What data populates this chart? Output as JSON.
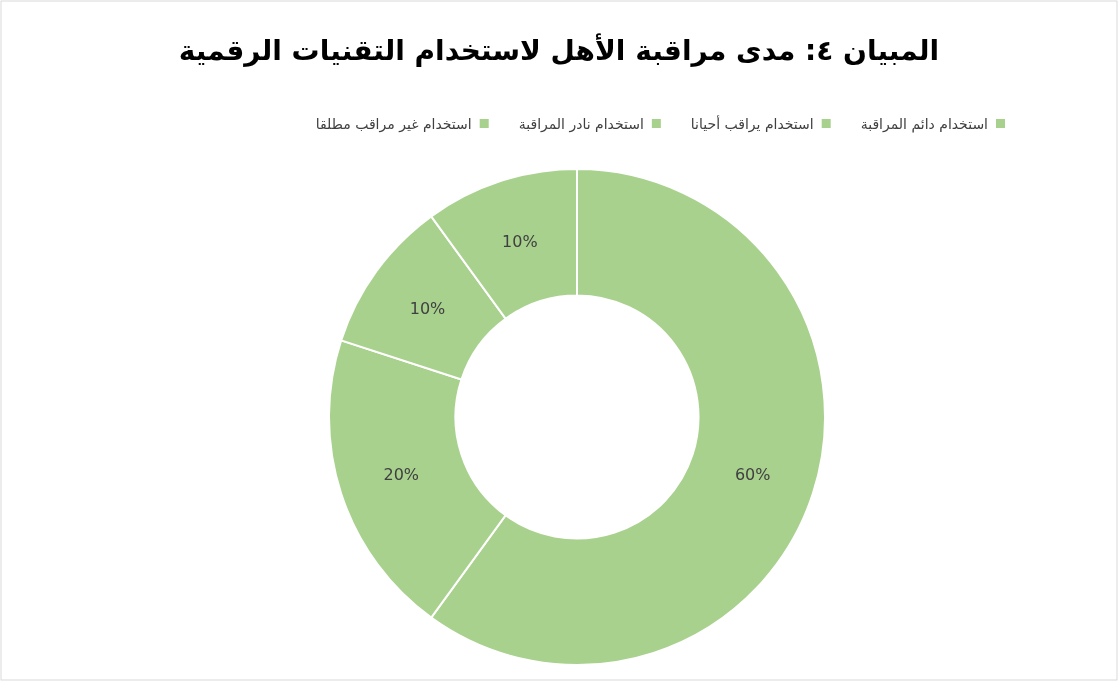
{
  "chart_data": {
    "type": "donut",
    "title": "المبيان ٤: مدى مراقبة الأهل لاستخدام التقنيات الرقمية",
    "categories": [
      "استخدام غير مراقب مطلقا",
      "استخدام نادر المراقبة",
      "استخدام يراقب أحيانا",
      "استخدام دائم المراقبة"
    ],
    "values": [
      60,
      20,
      10,
      10
    ],
    "value_labels": [
      "60%",
      "20%",
      "10%",
      "10%"
    ],
    "colors": [
      "#a9d18e",
      "#a9d18e",
      "#a9d18e",
      "#a9d18e"
    ],
    "legend": "top"
  }
}
